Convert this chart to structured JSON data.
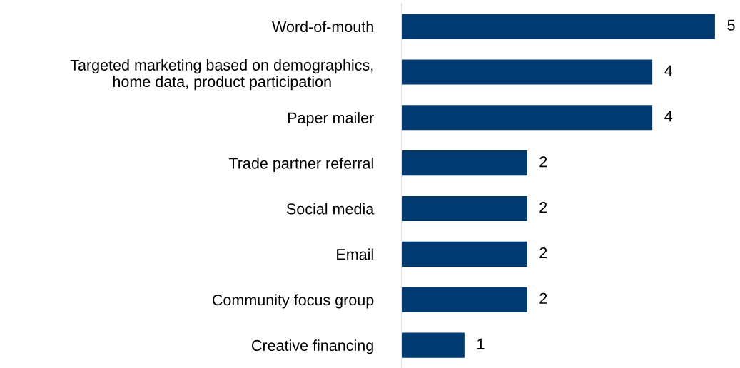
{
  "chart_data": {
    "type": "bar",
    "orientation": "horizontal",
    "categories": [
      "Word-of-mouth",
      "Targeted marketing based on demographics,\nhome data, product participation",
      "Paper mailer",
      "Trade partner referral",
      "Social media",
      "Email",
      "Community focus group",
      "Creative financing"
    ],
    "values": [
      5,
      4,
      4,
      2,
      2,
      2,
      2,
      1
    ],
    "color": "#003a70",
    "data_labels": true,
    "grid": false,
    "legend": false
  }
}
